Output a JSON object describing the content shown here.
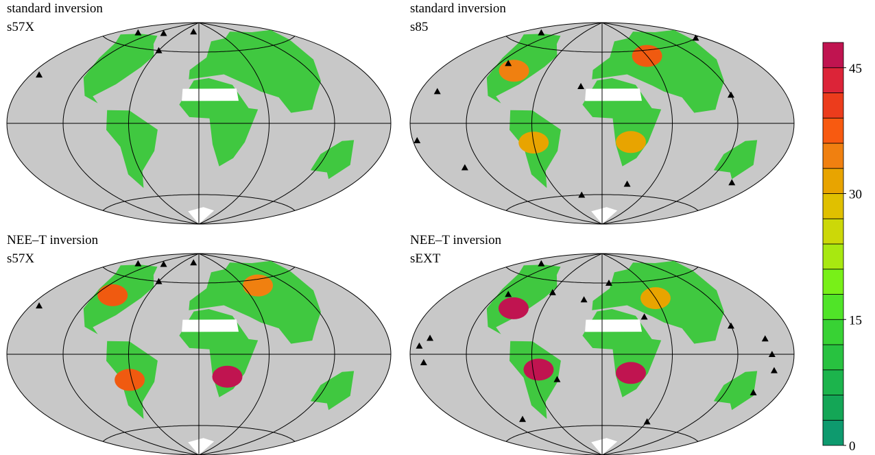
{
  "panels": [
    {
      "title": "standard inversion",
      "subtitle": "s57X"
    },
    {
      "title": "standard inversion",
      "subtitle": "s85"
    },
    {
      "title": "NEE–T inversion",
      "subtitle": "s57X"
    },
    {
      "title": "NEE–T inversion",
      "subtitle": "sEXT"
    }
  ],
  "colorbar": {
    "range": [
      0,
      48
    ],
    "ticks": [
      0,
      15,
      30,
      45
    ],
    "colors": [
      "#0e9a6e",
      "#14a656",
      "#1cb44c",
      "#28c240",
      "#38d234",
      "#50e428",
      "#78f018",
      "#a8e810",
      "#ccd808",
      "#e0c000",
      "#e8a400",
      "#f08010",
      "#f85a10",
      "#ec3c1c",
      "#dc2438",
      "#c01450"
    ]
  }
}
